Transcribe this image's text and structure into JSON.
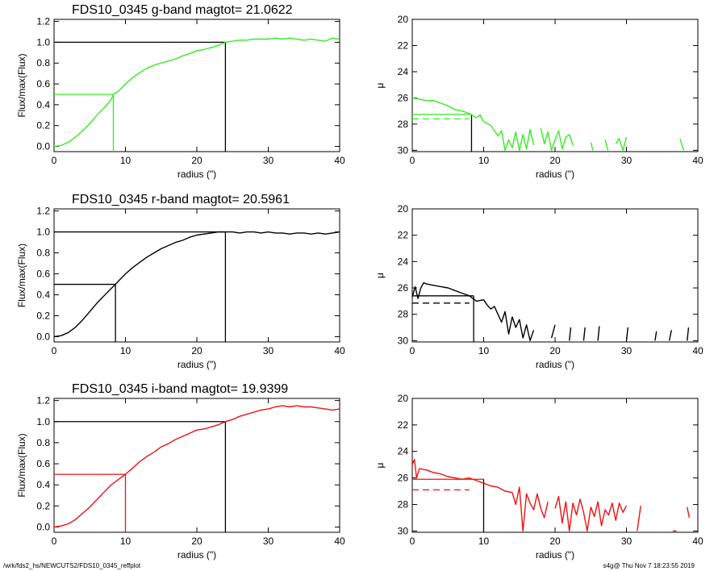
{
  "footer": {
    "path": "/wrk/fds2_hs/NEWCUTS2/FDS10_0345_reffplot",
    "stamp": "s4g@  Thu Nov  7 18:23:55 2019"
  },
  "colors": {
    "g": "#33ee22",
    "r": "#000000",
    "i": "#ee1111",
    "axes": "#000000"
  },
  "chart_data": [
    {
      "panel": "g-flux",
      "type": "line",
      "title": "FDS10_0345 g-band  magtot=      21.0622",
      "xlabel": "radius (\")",
      "ylabel": "Flux/max(Flux)",
      "xlim": [
        0,
        40
      ],
      "ylim": [
        -0.05,
        1.22
      ],
      "xticks": [
        0,
        10,
        20,
        30,
        40
      ],
      "yticks": [
        0.0,
        0.2,
        0.4,
        0.6,
        0.8,
        1.0,
        1.2
      ],
      "color": "#33ee22",
      "x": [
        0,
        1,
        2,
        3,
        4,
        5,
        6,
        7,
        8,
        8.3,
        9,
        10,
        11,
        12,
        13,
        14,
        15,
        16,
        17,
        18,
        19,
        20,
        21,
        22,
        23,
        24,
        25,
        26,
        27,
        28,
        29,
        30,
        31,
        32,
        33,
        34,
        35,
        36,
        37,
        38,
        39,
        40
      ],
      "y": [
        0.0,
        0.01,
        0.04,
        0.09,
        0.15,
        0.22,
        0.3,
        0.37,
        0.45,
        0.5,
        0.53,
        0.6,
        0.66,
        0.71,
        0.75,
        0.78,
        0.8,
        0.82,
        0.84,
        0.87,
        0.89,
        0.92,
        0.93,
        0.95,
        0.97,
        1.0,
        1.01,
        1.02,
        1.02,
        1.03,
        1.03,
        1.03,
        1.04,
        1.03,
        1.04,
        1.03,
        1.02,
        1.03,
        1.02,
        1.01,
        1.04,
        1.03
      ],
      "markers": [
        {
          "x": 8.3,
          "y": 0.5,
          "color": "#33ee22"
        },
        {
          "x": 24,
          "y": 1.0,
          "color": "#000000"
        }
      ]
    },
    {
      "panel": "g-mu",
      "type": "line",
      "xlabel": "radius (\")",
      "ylabel": "μ",
      "xlim": [
        0,
        40
      ],
      "ylim": [
        30.1,
        20
      ],
      "reversed_y": true,
      "xticks": [
        0,
        10,
        20,
        30,
        40
      ],
      "yticks": [
        20,
        22,
        24,
        26,
        28,
        30
      ],
      "color": "#33ee22",
      "x": [
        0,
        1,
        2,
        3,
        4,
        5,
        6,
        7,
        8,
        9,
        9.5,
        10,
        11,
        12,
        12.5,
        13,
        13.5,
        14,
        14.5,
        15,
        15.5,
        16,
        16.5,
        17,
        null,
        18,
        18.5,
        19,
        19.5,
        20,
        20.5,
        21,
        21.5,
        22,
        22.5,
        null,
        25,
        25.3,
        null,
        27,
        27.4,
        null,
        28.5,
        29,
        29.5,
        30,
        null,
        37.5,
        38
      ],
      "y": [
        26.0,
        26.1,
        26.2,
        26.2,
        26.4,
        26.6,
        26.9,
        27.0,
        27.2,
        27.5,
        27.3,
        27.8,
        28.1,
        28.9,
        28.5,
        30.0,
        29.2,
        29.8,
        28.6,
        30.0,
        28.8,
        29.9,
        28.4,
        29.6,
        null,
        28.3,
        29.5,
        28.6,
        30.0,
        29.2,
        28.5,
        29.9,
        29.0,
        28.8,
        29.6,
        null,
        29.4,
        30.0,
        null,
        29.2,
        30.0,
        null,
        29.5,
        29.1,
        30.0,
        29.0,
        null,
        29.1,
        30.0
      ],
      "markers": [
        {
          "mu": 27.25,
          "radius": 8.3,
          "style": "solid",
          "color": "#33ee22"
        },
        {
          "mu": 27.6,
          "style": "dashed",
          "color": "#33ee22"
        }
      ]
    },
    {
      "panel": "r-flux",
      "type": "line",
      "title": "FDS10_0345 r-band  magtot=      20.5961",
      "xlabel": "radius (\")",
      "ylabel": "Flux/max(Flux)",
      "xlim": [
        0,
        40
      ],
      "ylim": [
        -0.05,
        1.22
      ],
      "xticks": [
        0,
        10,
        20,
        30,
        40
      ],
      "yticks": [
        0.0,
        0.2,
        0.4,
        0.6,
        0.8,
        1.0,
        1.2
      ],
      "color": "#000000",
      "x": [
        0,
        1,
        2,
        3,
        4,
        5,
        6,
        7,
        8,
        8.6,
        9,
        10,
        11,
        12,
        13,
        14,
        15,
        16,
        17,
        18,
        19,
        20,
        21,
        22,
        23,
        24,
        25,
        26,
        27,
        28,
        29,
        30,
        31,
        32,
        33,
        34,
        35,
        36,
        37,
        38,
        39,
        40
      ],
      "y": [
        0.0,
        0.01,
        0.04,
        0.09,
        0.16,
        0.24,
        0.32,
        0.39,
        0.46,
        0.5,
        0.53,
        0.6,
        0.66,
        0.71,
        0.76,
        0.8,
        0.84,
        0.87,
        0.9,
        0.92,
        0.95,
        0.97,
        0.98,
        0.99,
        1.0,
        1.0,
        1.0,
        0.99,
        1.0,
        1.0,
        0.99,
        1.0,
        0.99,
        0.99,
        0.98,
        0.99,
        0.99,
        0.98,
        0.99,
        0.98,
        0.99,
        1.0
      ],
      "markers": [
        {
          "x": 8.6,
          "y": 0.5,
          "color": "#000000"
        },
        {
          "x": 24,
          "y": 1.0,
          "color": "#000000"
        }
      ]
    },
    {
      "panel": "r-mu",
      "type": "line",
      "xlabel": "radius (\")",
      "ylabel": "μ",
      "xlim": [
        0,
        40
      ],
      "ylim": [
        30.1,
        20
      ],
      "reversed_y": true,
      "xticks": [
        0,
        10,
        20,
        30,
        40
      ],
      "yticks": [
        20,
        22,
        24,
        26,
        28,
        30
      ],
      "color": "#000000",
      "x": [
        0,
        0.4,
        0.8,
        1.2,
        1.6,
        2,
        3,
        4,
        5,
        6,
        7,
        8,
        9,
        10,
        10.5,
        11,
        11.5,
        12,
        12.5,
        13,
        13.5,
        14,
        14.5,
        15,
        15.5,
        16,
        16.5,
        17,
        null,
        19.5,
        20,
        null,
        22,
        22.2,
        null,
        24,
        24.2,
        null,
        26,
        26.2,
        null,
        30,
        30.2,
        null,
        34,
        34.2,
        null,
        36,
        36.3,
        null,
        38.5,
        38.7
      ],
      "y": [
        26.7,
        25.9,
        26.8,
        26.0,
        25.6,
        25.7,
        25.8,
        25.9,
        26.0,
        26.2,
        26.4,
        26.6,
        27.0,
        26.9,
        27.3,
        27.6,
        27.4,
        28.0,
        28.6,
        27.8,
        29.5,
        28.2,
        29.0,
        28.4,
        29.8,
        28.8,
        30.0,
        29.2,
        null,
        29.8,
        28.8,
        null,
        30.0,
        29.0,
        null,
        30.0,
        29.0,
        null,
        30.0,
        28.9,
        null,
        30.0,
        29.0,
        null,
        30.0,
        29.3,
        null,
        30.0,
        29.2,
        null,
        30.0,
        29.0
      ],
      "markers": [
        {
          "mu": 26.6,
          "radius": 8.6,
          "style": "solid",
          "color": "#000000"
        },
        {
          "mu": 27.15,
          "style": "dashed",
          "color": "#000000"
        }
      ]
    },
    {
      "panel": "i-flux",
      "type": "line",
      "title": "FDS10_0345 i-band  magtot=      19.9399",
      "xlabel": "radius (\")",
      "ylabel": "Flux/max(Flux)",
      "xlim": [
        0,
        40
      ],
      "ylim": [
        -0.05,
        1.22
      ],
      "xticks": [
        0,
        10,
        20,
        30,
        40
      ],
      "yticks": [
        0.0,
        0.2,
        0.4,
        0.6,
        0.8,
        1.0,
        1.2
      ],
      "color": "#ee1111",
      "x": [
        0,
        1,
        2,
        3,
        4,
        5,
        6,
        7,
        8,
        9,
        10,
        11,
        12,
        13,
        14,
        15,
        16,
        17,
        18,
        19,
        20,
        21,
        22,
        23,
        24,
        25,
        26,
        27,
        28,
        29,
        30,
        31,
        32,
        33,
        34,
        35,
        36,
        37,
        38,
        39,
        40
      ],
      "y": [
        0.0,
        0.01,
        0.03,
        0.07,
        0.13,
        0.19,
        0.26,
        0.33,
        0.4,
        0.45,
        0.5,
        0.56,
        0.62,
        0.67,
        0.71,
        0.76,
        0.79,
        0.83,
        0.86,
        0.89,
        0.92,
        0.93,
        0.95,
        0.97,
        1.0,
        1.02,
        1.05,
        1.07,
        1.09,
        1.11,
        1.12,
        1.14,
        1.15,
        1.14,
        1.15,
        1.14,
        1.14,
        1.13,
        1.12,
        1.11,
        1.12
      ],
      "markers": [
        {
          "x": 10,
          "y": 0.5,
          "color": "#ee1111"
        },
        {
          "x": 24,
          "y": 1.0,
          "color": "#000000"
        }
      ]
    },
    {
      "panel": "i-mu",
      "type": "line",
      "xlabel": "radius (\")",
      "ylabel": "μ",
      "xlim": [
        0,
        40
      ],
      "ylim": [
        30.1,
        20
      ],
      "reversed_y": true,
      "xticks": [
        0,
        10,
        20,
        30,
        40
      ],
      "yticks": [
        20,
        22,
        24,
        26,
        28,
        30
      ],
      "color": "#ee1111",
      "x": [
        0,
        0.3,
        0.6,
        1,
        2,
        3,
        4,
        5,
        6,
        7,
        8,
        9,
        10,
        11,
        12,
        13,
        14,
        14.5,
        15,
        15.5,
        16,
        16.5,
        17,
        17.5,
        18,
        18.5,
        19,
        null,
        20,
        20.5,
        21,
        21.5,
        22,
        22.5,
        23,
        23.5,
        24,
        24.5,
        25,
        25.5,
        26,
        26.5,
        27,
        27.5,
        28,
        28.5,
        29,
        29.5,
        30,
        null,
        31.5,
        32,
        null,
        36.5,
        37,
        null,
        38.5,
        38.8
      ],
      "y": [
        25.0,
        24.6,
        26.0,
        25.3,
        25.4,
        25.6,
        25.7,
        25.9,
        26.0,
        26.1,
        26.0,
        26.2,
        26.4,
        26.6,
        26.7,
        27.0,
        27.1,
        28.0,
        26.7,
        30.0,
        27.2,
        27.9,
        28.4,
        27.2,
        28.3,
        29.0,
        27.8,
        null,
        28.3,
        27.4,
        29.4,
        27.8,
        30.0,
        27.9,
        28.8,
        27.6,
        28.6,
        30.0,
        28.2,
        28.9,
        27.8,
        29.6,
        28.4,
        28.8,
        27.9,
        29.2,
        27.9,
        28.6,
        28.1,
        null,
        30.0,
        28.1,
        null,
        30.0,
        30.0,
        null,
        28.2,
        29.0
      ],
      "markers": [
        {
          "mu": 26.1,
          "radius": 10,
          "style": "solid",
          "color": "#ee1111"
        },
        {
          "mu": 26.9,
          "style": "dashed",
          "color": "#ee1111"
        }
      ]
    }
  ]
}
